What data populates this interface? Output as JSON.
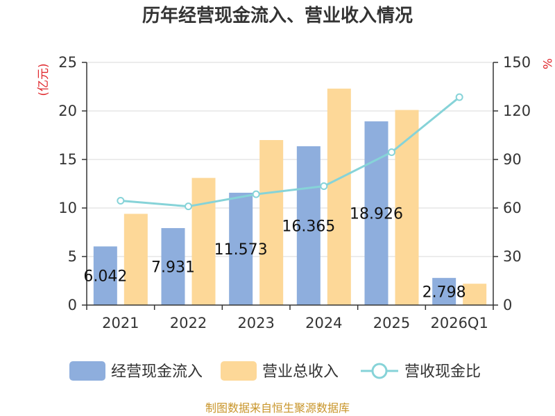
{
  "chart_data": {
    "type": "bar",
    "title": "历年经营现金流入、营业收入情况",
    "categories": [
      "2021",
      "2022",
      "2023",
      "2024",
      "2025",
      "2026Q1"
    ],
    "series": [
      {
        "name": "经营现金流入",
        "kind": "bar",
        "axis": "left",
        "color": "#8eaedd",
        "values": [
          6.042,
          7.931,
          11.573,
          16.365,
          18.926,
          2.798
        ],
        "labels": [
          "6.042",
          "7.931",
          "11.573",
          "16.365",
          "18.926",
          "2.798"
        ]
      },
      {
        "name": "营业总收入",
        "kind": "bar",
        "axis": "left",
        "color": "#fdd898",
        "values": [
          9.4,
          13.1,
          17.0,
          22.3,
          20.1,
          2.2
        ]
      },
      {
        "name": "营收现金比",
        "kind": "line",
        "axis": "right",
        "color": "#86d3d8",
        "values": [
          64.5,
          61.0,
          68.5,
          73.5,
          94.5,
          128.5
        ]
      }
    ],
    "y_left": {
      "label": "(亿元)",
      "ylim": [
        0,
        25
      ],
      "ticks": [
        "0",
        "5",
        "10",
        "15",
        "20",
        "25"
      ]
    },
    "y_right": {
      "label": "%",
      "ylim": [
        0,
        150
      ],
      "ticks": [
        "0",
        "30",
        "60",
        "90",
        "120",
        "150"
      ]
    },
    "grid": true,
    "legend": "bottom"
  },
  "source": "制图数据来自恒生聚源数据库",
  "colors": {
    "unit": "#e0282d",
    "source": "#c8952a",
    "axis": "#333333",
    "grid": "#d9d9d9"
  }
}
